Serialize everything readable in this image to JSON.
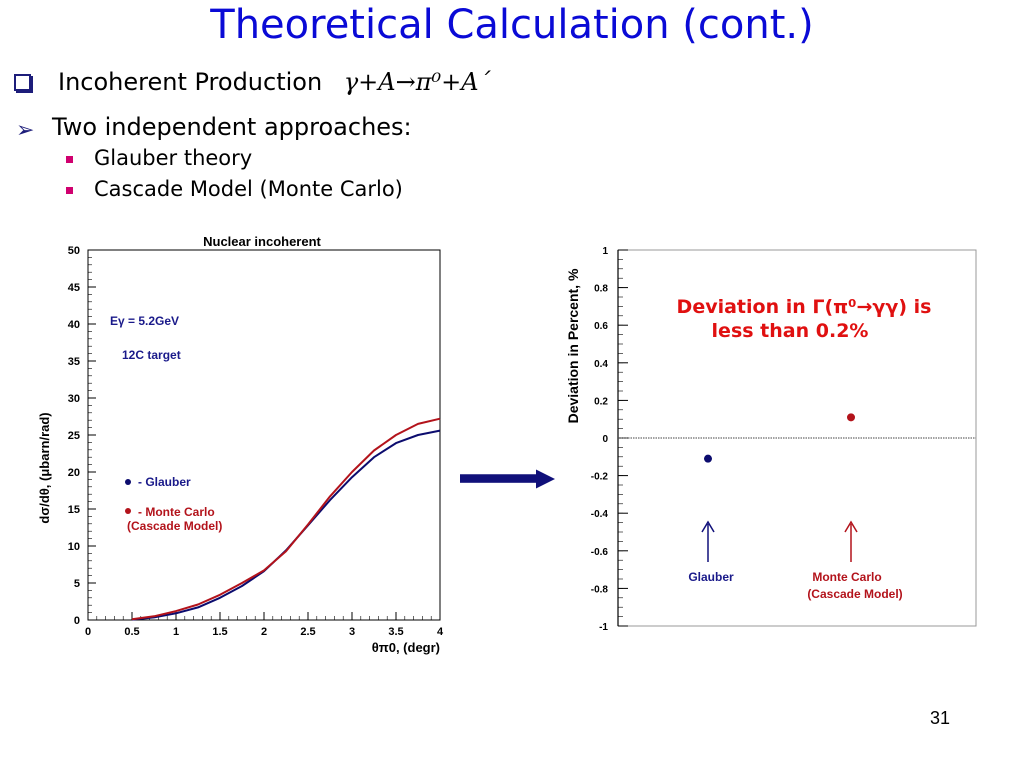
{
  "slide": {
    "title": "Theoretical Calculation (cont.)",
    "bullet1_text": "Incoherent Production",
    "bullet1_formula": "γ+A→π⁰+A´",
    "bullet2_text": "Two independent approaches:",
    "sub1": "Glauber theory",
    "sub2": "Cascade Model (Monte Carlo)",
    "page_number": "31",
    "colors": {
      "title": "#0a0ad6",
      "bullet_marker": "#1d1d7a",
      "sub_marker": "#d0006f",
      "glauber": "#0c0c6e",
      "monte_carlo": "#b3131b",
      "annotation": "#e01010",
      "arrow": "#10107a"
    }
  },
  "chart_data": [
    {
      "type": "line",
      "title": "Nuclear incoherent",
      "xlabel": "θπ0, (degr)",
      "ylabel": "dσ/dθ, (μbarn/rad)",
      "xlim": [
        0,
        4
      ],
      "ylim": [
        0,
        50
      ],
      "xticks": [
        "0",
        "0.5",
        "1",
        "1.5",
        "2",
        "2.5",
        "3",
        "3.5",
        "4"
      ],
      "yticks": [
        "0",
        "5",
        "10",
        "15",
        "20",
        "25",
        "30",
        "35",
        "40",
        "45",
        "50"
      ],
      "annotations": [
        "Eγ = 5.2GeV",
        "12C target"
      ],
      "legend": [
        "- Glauber",
        "- Monte Carlo",
        "(Cascade Model)"
      ],
      "series": [
        {
          "name": "Glauber",
          "x": [
            0.5,
            0.75,
            1.0,
            1.25,
            1.5,
            1.75,
            2.0,
            2.25,
            2.5,
            2.75,
            3.0,
            3.25,
            3.5,
            3.75,
            4.0
          ],
          "values": [
            0.05,
            0.35,
            0.9,
            1.7,
            3.0,
            4.6,
            6.6,
            9.4,
            12.8,
            16.2,
            19.3,
            22.0,
            23.9,
            25.0,
            25.6
          ]
        },
        {
          "name": "Monte Carlo",
          "x": [
            0.5,
            0.75,
            1.0,
            1.25,
            1.5,
            1.75,
            2.0,
            2.25,
            2.5,
            2.75,
            3.0,
            3.25,
            3.5,
            3.75,
            4.0
          ],
          "values": [
            0.1,
            0.5,
            1.2,
            2.1,
            3.4,
            5.0,
            6.7,
            9.3,
            12.9,
            16.7,
            20.0,
            22.9,
            25.0,
            26.5,
            27.2
          ]
        }
      ]
    },
    {
      "type": "scatter",
      "title": "",
      "xlabel": "",
      "ylabel": "Deviation in Percent, %",
      "ylim": [
        -1,
        1
      ],
      "yticks": [
        "-1",
        "-0.8",
        "-0.6",
        "-0.4",
        "-0.2",
        "0",
        "0.2",
        "0.4",
        "0.6",
        "0.8",
        "1"
      ],
      "points": [
        {
          "label": "Glauber",
          "value": -0.11
        },
        {
          "label": "Monte Carlo",
          "value": 0.11
        }
      ],
      "point_labels": [
        "Glauber",
        "Monte Carlo",
        "(Cascade Model)"
      ],
      "annotation": [
        "Deviation in Γ(π⁰→γγ) is",
        "less than 0.2%"
      ]
    }
  ]
}
